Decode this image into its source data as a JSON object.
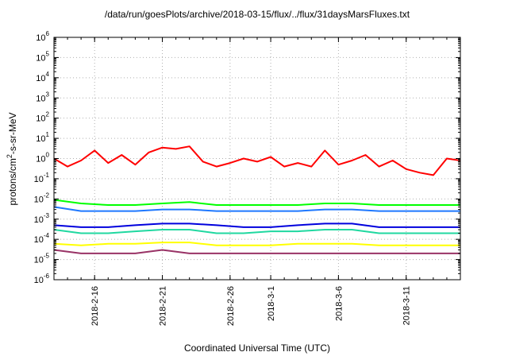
{
  "chart_data": {
    "type": "line",
    "title": "/data/run/goesPlots/archive/2018-03-15/flux/../flux/31daysMarsFluxes.txt",
    "xlabel": "Coordinated Universal Time (UTC)",
    "ylabel_parts": [
      "protons/cm",
      "2",
      "-s-sr-MeV"
    ],
    "yscale": "log",
    "ylim": [
      1e-06,
      1000000.0
    ],
    "ytick_exponents": [
      -6,
      -5,
      -4,
      -3,
      -2,
      -1,
      0,
      1,
      2,
      3,
      4,
      5,
      6
    ],
    "ytick_base": "10",
    "xlim": [
      "2018-02-13",
      "2018-03-15"
    ],
    "xticks": [
      {
        "date": "2018-02-16",
        "label": "2018-2-16"
      },
      {
        "date": "2018-02-21",
        "label": "2018-2-21"
      },
      {
        "date": "2018-02-26",
        "label": "2018-2-26"
      },
      {
        "date": "2018-03-01",
        "label": "2018-3-1"
      },
      {
        "date": "2018-03-06",
        "label": "2018-3-6"
      },
      {
        "date": "2018-03-11",
        "label": "2018-3-11"
      }
    ],
    "grid": true,
    "series": [
      {
        "color": "#ff0000",
        "points": [
          [
            "2018-02-13",
            1.0
          ],
          [
            "2018-02-14",
            0.4
          ],
          [
            "2018-02-15",
            0.8
          ],
          [
            "2018-02-16",
            2.5
          ],
          [
            "2018-02-17",
            0.6
          ],
          [
            "2018-02-18",
            1.5
          ],
          [
            "2018-02-19",
            0.5
          ],
          [
            "2018-02-20",
            2.0
          ],
          [
            "2018-02-21",
            3.5
          ],
          [
            "2018-02-22",
            3.0
          ],
          [
            "2018-02-23",
            4.0
          ],
          [
            "2018-02-24",
            0.7
          ],
          [
            "2018-02-25",
            0.4
          ],
          [
            "2018-02-26",
            0.6
          ],
          [
            "2018-02-27",
            1.0
          ],
          [
            "2018-02-28",
            0.7
          ],
          [
            "2018-03-01",
            1.2
          ],
          [
            "2018-03-02",
            0.4
          ],
          [
            "2018-03-03",
            0.6
          ],
          [
            "2018-03-04",
            0.4
          ],
          [
            "2018-03-05",
            2.5
          ],
          [
            "2018-03-06",
            0.5
          ],
          [
            "2018-03-07",
            0.8
          ],
          [
            "2018-03-08",
            1.5
          ],
          [
            "2018-03-09",
            0.4
          ],
          [
            "2018-03-10",
            0.8
          ],
          [
            "2018-03-11",
            0.3
          ],
          [
            "2018-03-12",
            0.2
          ],
          [
            "2018-03-13",
            0.15
          ],
          [
            "2018-03-14",
            1.0
          ],
          [
            "2018-03-15",
            0.8
          ]
        ]
      },
      {
        "color": "#00ff00",
        "points": [
          [
            "2018-02-13",
            0.009
          ],
          [
            "2018-02-15",
            0.006
          ],
          [
            "2018-02-17",
            0.005
          ],
          [
            "2018-02-19",
            0.005
          ],
          [
            "2018-02-21",
            0.006
          ],
          [
            "2018-02-23",
            0.007
          ],
          [
            "2018-02-25",
            0.005
          ],
          [
            "2018-02-27",
            0.005
          ],
          [
            "2018-03-01",
            0.005
          ],
          [
            "2018-03-03",
            0.005
          ],
          [
            "2018-03-05",
            0.006
          ],
          [
            "2018-03-07",
            0.006
          ],
          [
            "2018-03-09",
            0.005
          ],
          [
            "2018-03-11",
            0.005
          ],
          [
            "2018-03-13",
            0.005
          ],
          [
            "2018-03-15",
            0.005
          ]
        ]
      },
      {
        "color": "#1e78ff",
        "points": [
          [
            "2018-02-13",
            0.004
          ],
          [
            "2018-02-15",
            0.0025
          ],
          [
            "2018-02-17",
            0.0025
          ],
          [
            "2018-02-19",
            0.0025
          ],
          [
            "2018-02-21",
            0.003
          ],
          [
            "2018-02-23",
            0.003
          ],
          [
            "2018-02-25",
            0.0025
          ],
          [
            "2018-02-27",
            0.0025
          ],
          [
            "2018-03-01",
            0.0025
          ],
          [
            "2018-03-03",
            0.0025
          ],
          [
            "2018-03-05",
            0.003
          ],
          [
            "2018-03-07",
            0.003
          ],
          [
            "2018-03-09",
            0.0025
          ],
          [
            "2018-03-11",
            0.0025
          ],
          [
            "2018-03-13",
            0.0025
          ],
          [
            "2018-03-15",
            0.0025
          ]
        ]
      },
      {
        "color": "#0000dd",
        "points": [
          [
            "2018-02-13",
            0.0005
          ],
          [
            "2018-02-15",
            0.0004
          ],
          [
            "2018-02-17",
            0.0004
          ],
          [
            "2018-02-19",
            0.0005
          ],
          [
            "2018-02-21",
            0.0006
          ],
          [
            "2018-02-23",
            0.0006
          ],
          [
            "2018-02-25",
            0.0005
          ],
          [
            "2018-02-27",
            0.0004
          ],
          [
            "2018-03-01",
            0.0004
          ],
          [
            "2018-03-03",
            0.0005
          ],
          [
            "2018-03-05",
            0.0006
          ],
          [
            "2018-03-07",
            0.0006
          ],
          [
            "2018-03-09",
            0.0004
          ],
          [
            "2018-03-11",
            0.0004
          ],
          [
            "2018-03-13",
            0.0004
          ],
          [
            "2018-03-15",
            0.0004
          ]
        ]
      },
      {
        "color": "#20d8a0",
        "points": [
          [
            "2018-02-13",
            0.0003
          ],
          [
            "2018-02-15",
            0.0002
          ],
          [
            "2018-02-17",
            0.0002
          ],
          [
            "2018-02-19",
            0.00025
          ],
          [
            "2018-02-21",
            0.0003
          ],
          [
            "2018-02-23",
            0.0003
          ],
          [
            "2018-02-25",
            0.0002
          ],
          [
            "2018-02-27",
            0.0002
          ],
          [
            "2018-03-01",
            0.00025
          ],
          [
            "2018-03-03",
            0.00025
          ],
          [
            "2018-03-05",
            0.0003
          ],
          [
            "2018-03-07",
            0.0003
          ],
          [
            "2018-03-09",
            0.0002
          ],
          [
            "2018-03-11",
            0.0002
          ],
          [
            "2018-03-13",
            0.0002
          ],
          [
            "2018-03-15",
            0.0002
          ]
        ]
      },
      {
        "color": "#ffff00",
        "points": [
          [
            "2018-02-13",
            6e-05
          ],
          [
            "2018-02-15",
            5e-05
          ],
          [
            "2018-02-17",
            6e-05
          ],
          [
            "2018-02-19",
            6e-05
          ],
          [
            "2018-02-21",
            7e-05
          ],
          [
            "2018-02-23",
            7e-05
          ],
          [
            "2018-02-25",
            5e-05
          ],
          [
            "2018-02-27",
            5e-05
          ],
          [
            "2018-03-01",
            5e-05
          ],
          [
            "2018-03-03",
            6e-05
          ],
          [
            "2018-03-05",
            6e-05
          ],
          [
            "2018-03-07",
            6e-05
          ],
          [
            "2018-03-09",
            5e-05
          ],
          [
            "2018-03-11",
            5e-05
          ],
          [
            "2018-03-13",
            5e-05
          ],
          [
            "2018-03-15",
            5e-05
          ]
        ]
      },
      {
        "color": "#993366",
        "points": [
          [
            "2018-02-13",
            3e-05
          ],
          [
            "2018-02-15",
            2e-05
          ],
          [
            "2018-02-17",
            2e-05
          ],
          [
            "2018-02-19",
            2e-05
          ],
          [
            "2018-02-21",
            3e-05
          ],
          [
            "2018-02-23",
            2e-05
          ],
          [
            "2018-02-25",
            2e-05
          ],
          [
            "2018-02-27",
            2e-05
          ],
          [
            "2018-03-01",
            2e-05
          ],
          [
            "2018-03-03",
            2e-05
          ],
          [
            "2018-03-05",
            2e-05
          ],
          [
            "2018-03-07",
            2e-05
          ],
          [
            "2018-03-09",
            2e-05
          ],
          [
            "2018-03-11",
            2e-05
          ],
          [
            "2018-03-13",
            2e-05
          ],
          [
            "2018-03-15",
            2e-05
          ]
        ]
      }
    ]
  }
}
